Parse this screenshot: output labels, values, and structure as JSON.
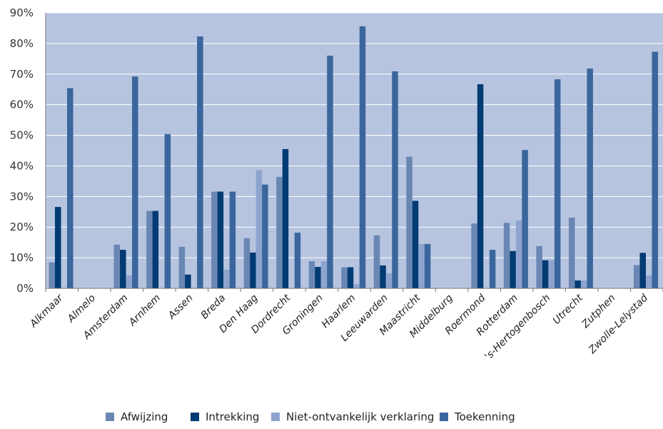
{
  "chart_data": {
    "type": "bar",
    "categories": [
      "Alkmaar",
      "Almelo",
      "Amsterdam",
      "Arnhem",
      "Assen",
      "Breda",
      "Den Haag",
      "Dordrecht",
      "Groningen",
      "Haarlem",
      "Leeuwarden",
      "Maastricht",
      "Middelburg",
      "Roermond",
      "Rotterdam",
      "'s-Hertogenbosch",
      "Utrecht",
      "Zutphen",
      "Zwolle-Lelystad"
    ],
    "series": [
      {
        "name": "Afwijzing",
        "color": "#6a87b4",
        "values": [
          8.5,
          0,
          14.3,
          25.3,
          13.6,
          31.6,
          16.4,
          36.4,
          8.9,
          6.9,
          17.3,
          43.0,
          0,
          21.2,
          21.4,
          13.8,
          23.1,
          0,
          7.6
        ]
      },
      {
        "name": "Intrekking",
        "color": "#003b73",
        "values": [
          26.6,
          0,
          12.6,
          25.3,
          4.5,
          31.6,
          11.7,
          45.5,
          7.0,
          6.9,
          7.5,
          28.6,
          0,
          66.7,
          12.2,
          9.2,
          2.6,
          0,
          11.6
        ]
      },
      {
        "name": "Niet-ontvankelijk verklaring",
        "color": "#8ea4cf",
        "values": [
          0,
          0,
          4.3,
          0,
          0,
          6.1,
          38.6,
          0,
          8.9,
          1.4,
          4.9,
          14.5,
          0,
          0,
          22.2,
          9.2,
          2.6,
          0,
          4.2
        ]
      },
      {
        "name": "Toekenning",
        "color": "#3a669d",
        "values": [
          65.4,
          0,
          69.2,
          50.4,
          82.3,
          31.6,
          33.9,
          18.2,
          76.0,
          85.6,
          70.9,
          14.5,
          0,
          12.6,
          45.2,
          68.3,
          71.8,
          0,
          77.3
        ]
      }
    ],
    "ylim": [
      0,
      90
    ],
    "yticks": [
      0,
      10,
      20,
      30,
      40,
      50,
      60,
      70,
      80,
      90
    ],
    "ytick_labels": [
      "0%",
      "10%",
      "20%",
      "30%",
      "40%",
      "50%",
      "60%",
      "70%",
      "80%",
      "90%"
    ],
    "grid": true,
    "legend_position": "bottom",
    "plot_background": "#b6c4df",
    "grid_color": "#ffffff"
  }
}
